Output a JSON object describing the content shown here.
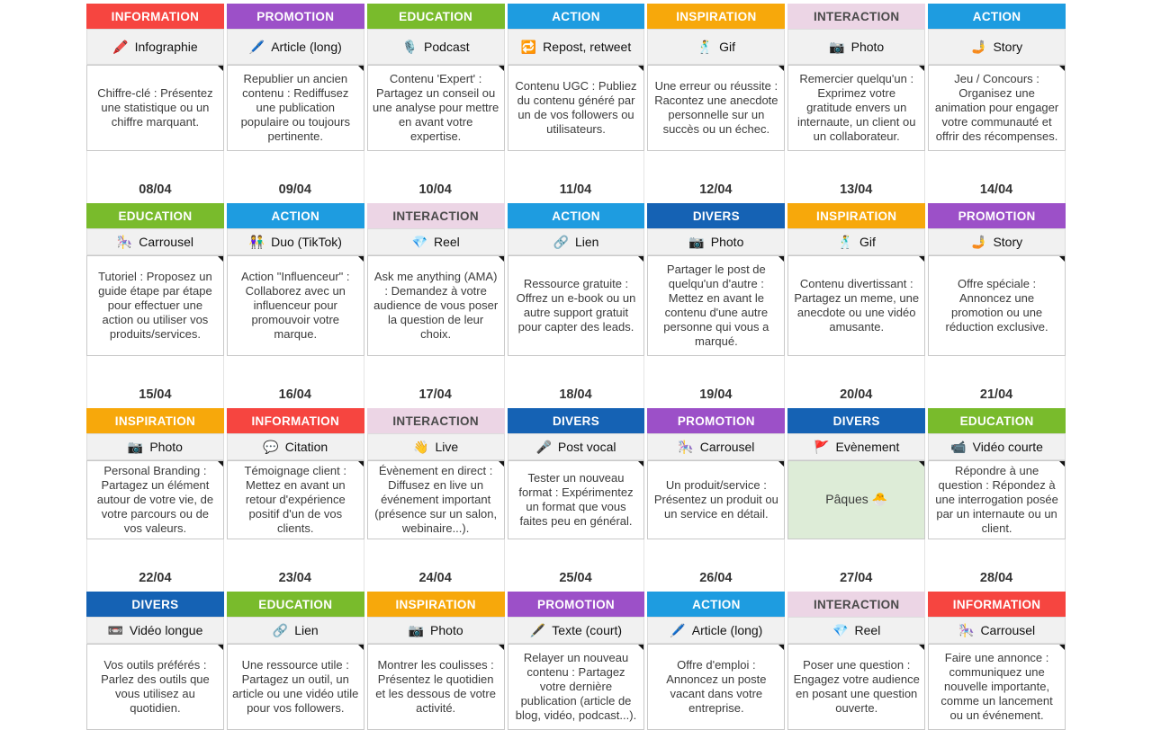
{
  "calendar": {
    "category_colors": {
      "INFORMATION": {
        "bg": "#f64540",
        "text": "#ffffff"
      },
      "PROMOTION": {
        "bg": "#9c50c8",
        "text": "#ffffff"
      },
      "EDUCATION": {
        "bg": "#79bb2c",
        "text": "#ffffff"
      },
      "ACTION": {
        "bg": "#1e9ce0",
        "text": "#ffffff"
      },
      "INSPIRATION": {
        "bg": "#f7a80b",
        "text": "#ffffff"
      },
      "INTERACTION": {
        "bg": "#ecd5e5",
        "text": "#4a4a4a"
      },
      "DIVERS": {
        "bg": "#1562b4",
        "text": "#ffffff"
      }
    },
    "highlight_bg": "#ddecd7",
    "weeks": [
      {
        "show_dates": false,
        "days": [
          {
            "date": "",
            "category": "INFORMATION",
            "format": {
              "icon": "🖍️",
              "icon_name": "crayon-icon",
              "label": "Infographie"
            },
            "description": "Chiffre-clé :  Présentez une statistique ou un chiffre marquant."
          },
          {
            "date": "",
            "category": "PROMOTION",
            "format": {
              "icon": "🖊️",
              "icon_name": "pen-icon",
              "label": "Article (long)"
            },
            "description": "Republier un ancien contenu : Rediffusez une publication populaire ou toujours pertinente."
          },
          {
            "date": "",
            "category": "EDUCATION",
            "format": {
              "icon": "🎙️",
              "icon_name": "studio-microphone-icon",
              "label": "Podcast"
            },
            "description": "Contenu 'Expert' : Partagez un conseil ou une analyse pour mettre en avant votre expertise."
          },
          {
            "date": "",
            "category": "ACTION",
            "format": {
              "icon": "🔁",
              "icon_name": "repeat-icon",
              "label": "Repost, retweet"
            },
            "description": "Contenu UGC :  Publiez du contenu généré par un de vos followers ou utilisateurs."
          },
          {
            "date": "",
            "category": "INSPIRATION",
            "format": {
              "icon": "🕺",
              "icon_name": "dancer-icon",
              "label": "Gif"
            },
            "description": "Une erreur ou réussite : Racontez une anecdote personnelle sur un succès ou un échec."
          },
          {
            "date": "",
            "category": "INTERACTION",
            "format": {
              "icon": "📷",
              "icon_name": "camera-icon",
              "label": "Photo"
            },
            "description": "Remercier quelqu'un : Exprimez votre gratitude envers un internaute, un client ou un collaborateur."
          },
          {
            "date": "",
            "category": "ACTION",
            "format": {
              "icon": "🤳",
              "icon_name": "selfie-icon",
              "label": "Story"
            },
            "description": "Jeu / Concours : Organisez une animation pour engager votre communauté et offrir des récompenses."
          }
        ]
      },
      {
        "show_dates": true,
        "days": [
          {
            "date": "08/04",
            "category": "EDUCATION",
            "format": {
              "icon": "🎠",
              "icon_name": "carousel-icon",
              "label": "Carrousel"
            },
            "description": "Tutoriel : Proposez un guide étape par étape pour effectuer une action ou utiliser vos produits/services."
          },
          {
            "date": "09/04",
            "category": "ACTION",
            "format": {
              "icon": "👫",
              "icon_name": "two-people-icon",
              "label": "Duo (TikTok)"
            },
            "description": "Action \"Influenceur\" : Collaborez avec un influenceur pour promouvoir votre marque."
          },
          {
            "date": "10/04",
            "category": "INTERACTION",
            "format": {
              "icon": "💎",
              "icon_name": "gem-icon",
              "label": "Reel"
            },
            "description": "Ask me anything (AMA) : Demandez à votre audience de vous poser la question de leur choix."
          },
          {
            "date": "11/04",
            "category": "ACTION",
            "format": {
              "icon": "🔗",
              "icon_name": "link-icon",
              "label": "Lien"
            },
            "description": "Ressource gratuite : Offrez un e-book ou un autre support gratuit pour capter des leads."
          },
          {
            "date": "12/04",
            "category": "DIVERS",
            "format": {
              "icon": "📷",
              "icon_name": "camera-icon",
              "label": "Photo"
            },
            "description": "Partager le post de quelqu'un d'autre : Mettez en avant le contenu d'une autre personne qui vous a marqué."
          },
          {
            "date": "13/04",
            "category": "INSPIRATION",
            "format": {
              "icon": "🕺",
              "icon_name": "dancer-icon",
              "label": "Gif"
            },
            "description": "Contenu divertissant : Partagez un meme, une anecdote ou une vidéo amusante."
          },
          {
            "date": "14/04",
            "category": "PROMOTION",
            "format": {
              "icon": "🤳",
              "icon_name": "selfie-icon",
              "label": "Story"
            },
            "description": "Offre spéciale : Annoncez une promotion ou une réduction exclusive."
          }
        ]
      },
      {
        "show_dates": true,
        "days": [
          {
            "date": "15/04",
            "category": "INSPIRATION",
            "format": {
              "icon": "📷",
              "icon_name": "camera-icon",
              "label": "Photo"
            },
            "description": "Personal Branding : Partagez un élément autour de votre vie, de votre parcours ou de vos valeurs."
          },
          {
            "date": "16/04",
            "category": "INFORMATION",
            "format": {
              "icon": "💬",
              "icon_name": "speech-balloon-icon",
              "label": "Citation"
            },
            "description": "Témoignage client : Mettez en avant un retour d'expérience positif d'un de vos clients."
          },
          {
            "date": "17/04",
            "category": "INTERACTION",
            "format": {
              "icon": "👋",
              "icon_name": "waving-hand-icon",
              "label": "Live"
            },
            "description": "Évènement en direct : Diffusez en live un événement important (présence sur un salon, webinaire...)."
          },
          {
            "date": "18/04",
            "category": "DIVERS",
            "format": {
              "icon": "🎤",
              "icon_name": "microphone-icon",
              "label": "Post vocal"
            },
            "description": "Tester un nouveau format :  Expérimentez un format que vous faites peu en général."
          },
          {
            "date": "19/04",
            "category": "PROMOTION",
            "format": {
              "icon": "🎠",
              "icon_name": "carousel-icon",
              "label": "Carrousel"
            },
            "description": "Un produit/service : Présentez un produit ou un service en détail."
          },
          {
            "date": "20/04",
            "category": "DIVERS",
            "format": {
              "icon": "🚩",
              "icon_name": "flag-icon",
              "label": "Evènement"
            },
            "description": "Pâques 🐣",
            "highlight": true
          },
          {
            "date": "21/04",
            "category": "EDUCATION",
            "format": {
              "icon": "📹",
              "icon_name": "video-camera-icon",
              "label": "Vidéo courte"
            },
            "description": "Répondre à une question : Répondez à une interrogation posée par un internaute ou un client."
          }
        ]
      },
      {
        "show_dates": true,
        "days": [
          {
            "date": "22/04",
            "category": "DIVERS",
            "format": {
              "icon": "📼",
              "icon_name": "vhs-cassette-icon",
              "label": "Vidéo longue"
            },
            "description": "Vos outils préférés : Parlez des outils que vous utilisez au quotidien."
          },
          {
            "date": "23/04",
            "category": "EDUCATION",
            "format": {
              "icon": "🔗",
              "icon_name": "link-icon",
              "label": "Lien"
            },
            "description": "Une ressource utile : Partagez un outil, un article ou une vidéo utile pour vos followers."
          },
          {
            "date": "24/04",
            "category": "INSPIRATION",
            "format": {
              "icon": "📷",
              "icon_name": "camera-icon",
              "label": "Photo"
            },
            "description": "Montrer les coulisses : Présentez le quotidien et les dessous de votre activité."
          },
          {
            "date": "25/04",
            "category": "PROMOTION",
            "format": {
              "icon": "🖋️",
              "icon_name": "fountain-pen-icon",
              "label": "Texte (court)"
            },
            "description": "Relayer un nouveau contenu :  Partagez votre dernière publication (article de blog, vidéo, podcast...)."
          },
          {
            "date": "26/04",
            "category": "ACTION",
            "format": {
              "icon": "🖊️",
              "icon_name": "pen-icon",
              "label": "Article (long)"
            },
            "description": "Offre d'emploi : Annoncez un poste vacant dans votre entreprise."
          },
          {
            "date": "27/04",
            "category": "INTERACTION",
            "format": {
              "icon": "💎",
              "icon_name": "gem-icon",
              "label": "Reel"
            },
            "description": "Poser une question : Engagez votre audience en posant une question ouverte."
          },
          {
            "date": "28/04",
            "category": "INFORMATION",
            "format": {
              "icon": "🎠",
              "icon_name": "carousel-icon",
              "label": "Carrousel"
            },
            "description": "Faire une annonce : communiquez une nouvelle importante, comme un lancement ou un événement."
          }
        ]
      }
    ]
  }
}
